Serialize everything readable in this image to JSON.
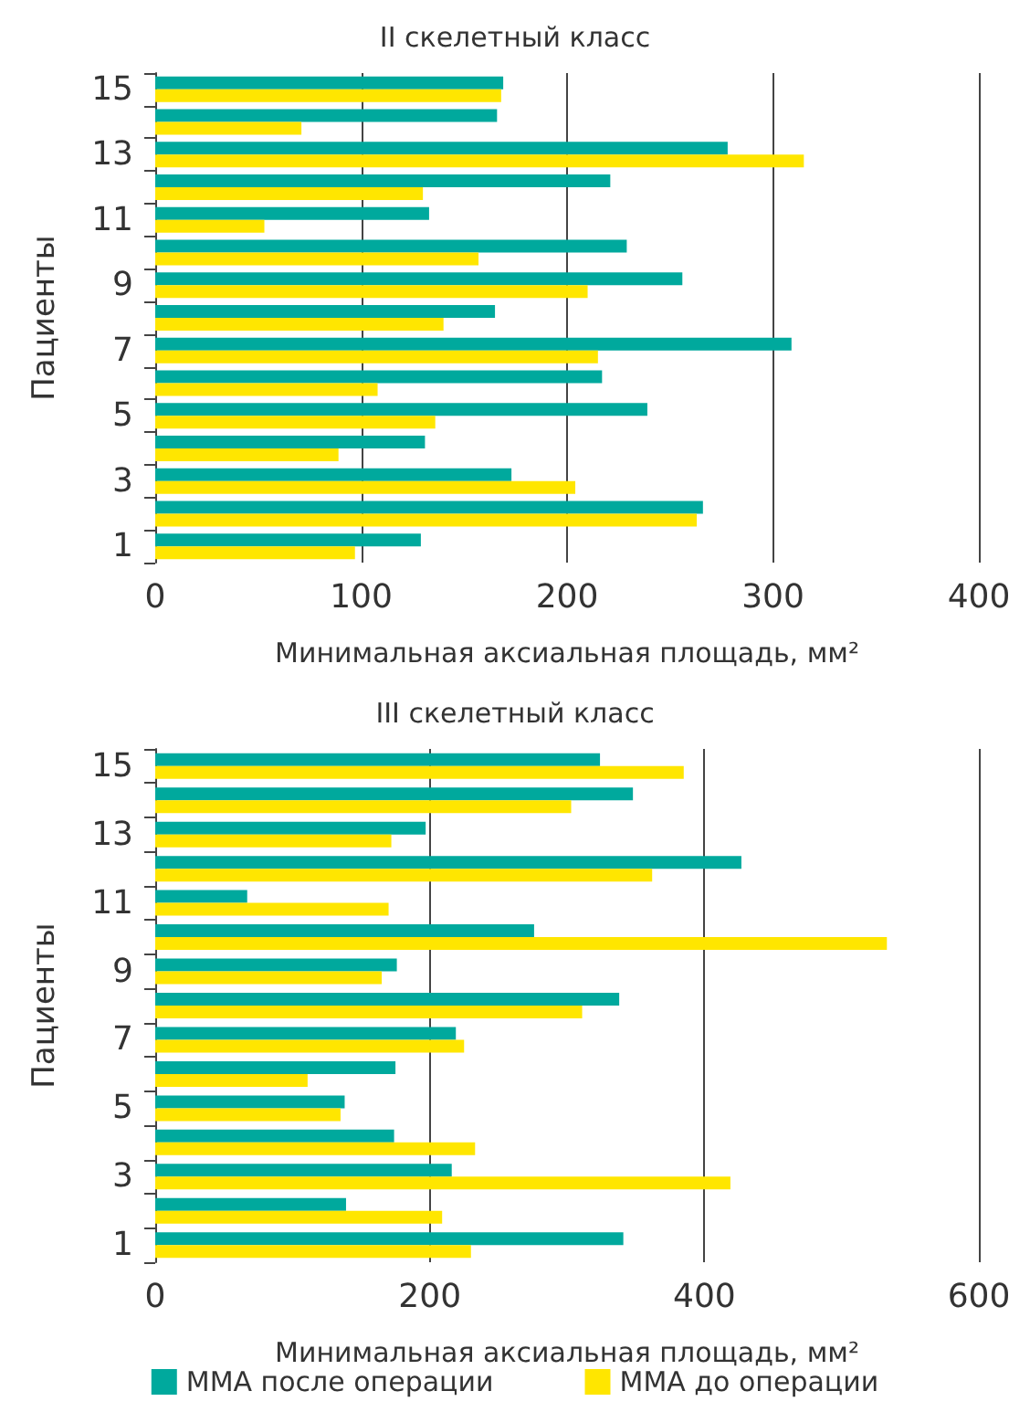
{
  "chart_data": [
    {
      "type": "bar",
      "orientation": "horizontal",
      "title": "II скелетный класс",
      "xlabel": "Минимальная аксиальная площадь, мм²",
      "ylabel": "Пациенты",
      "categories": [
        "15",
        null,
        "13",
        null,
        "11",
        null,
        "9",
        null,
        "7",
        null,
        "5",
        null,
        "3",
        null,
        "1"
      ],
      "series": [
        {
          "color": "#00a99d",
          "values": [
            169,
            166,
            278,
            221,
            133,
            229,
            256,
            165,
            309,
            217,
            239,
            131,
            173,
            266,
            129
          ]
        },
        {
          "color": "#ffe600",
          "values": [
            168,
            71,
            315,
            130,
            53,
            157,
            210,
            140,
            215,
            108,
            136,
            89,
            204,
            263,
            97
          ]
        }
      ],
      "xlim": [
        0,
        400
      ],
      "xticks": [
        0,
        100,
        200,
        300,
        400
      ],
      "grid": "x",
      "legend": false
    },
    {
      "type": "bar",
      "orientation": "horizontal",
      "title": "III скелетный класс",
      "xlabel": "Минимальная аксиальная площадь, мм²",
      "ylabel": "Пациенты",
      "categories": [
        "15",
        null,
        "13",
        null,
        "11",
        null,
        "9",
        null,
        "7",
        null,
        "5",
        null,
        "3",
        null,
        "1"
      ],
      "series": [
        {
          "name": "ММА после операции",
          "color": "#00a99d",
          "values": [
            324,
            348,
            197,
            427,
            67,
            276,
            176,
            338,
            219,
            175,
            138,
            174,
            216,
            139,
            341
          ]
        },
        {
          "name": "ММА до операции",
          "color": "#ffe600",
          "values": [
            385,
            303,
            172,
            362,
            170,
            533,
            165,
            311,
            225,
            111,
            135,
            233,
            419,
            209,
            230
          ]
        }
      ],
      "xlim": [
        0,
        600
      ],
      "xticks": [
        0,
        200,
        400,
        600
      ],
      "grid": "x",
      "legend": "bottom"
    }
  ]
}
